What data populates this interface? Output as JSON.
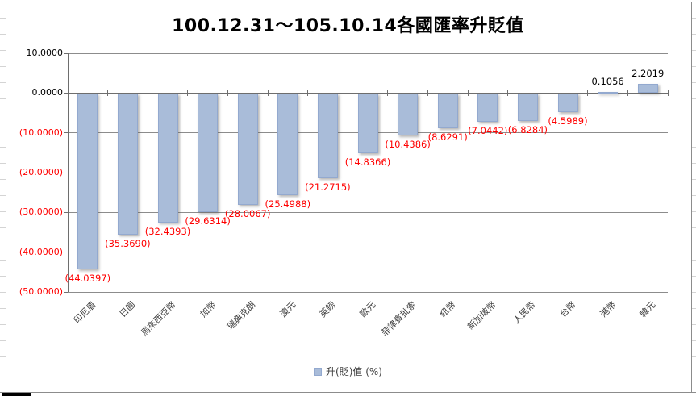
{
  "chart_data": {
    "type": "bar",
    "title": "100.12.31～105.10.14各國匯率升貶值",
    "legend": "升(貶)值 (%)",
    "legend_position": "bottom",
    "categories": [
      "印尼盾",
      "日圓",
      "馬來西亞幣",
      "加幣",
      "瑞典克朗",
      "澳元",
      "英鎊",
      "歐元",
      "菲律賓批索",
      "紐幣",
      "新加坡幣",
      "人民幣",
      "台幣",
      "港幣",
      "韓元"
    ],
    "values": [
      -44.0397,
      -35.369,
      -32.4393,
      -29.6314,
      -28.0067,
      -25.4988,
      -21.2715,
      -14.8366,
      -10.4386,
      -8.6291,
      -7.0442,
      -6.8284,
      -4.5989,
      0.1056,
      2.2019
    ],
    "data_labels": [
      "(44.0397)",
      "(35.3690)",
      "(32.4393)",
      "(29.6314)",
      "(28.0067)",
      "(25.4988)",
      "(21.2715)",
      "(14.8366)",
      "(10.4386)",
      "(8.6291)",
      "(7.0442)",
      "(6.8284)",
      "(4.5989)",
      "0.1056",
      "2.2019"
    ],
    "y_tick_labels": [
      "10.0000",
      "0.0000",
      "(10.0000)",
      "(20.0000)",
      "(30.0000)",
      "(40.0000)",
      "(50.0000)"
    ],
    "y_tick_values": [
      10,
      0,
      -10,
      -20,
      -30,
      -40,
      -50
    ],
    "ylim": [
      -50,
      10
    ],
    "grid": true,
    "colors": {
      "bar_fill": "#a9bcd9",
      "bar_border": "#93a9cf",
      "negative_text": "#ff0000",
      "positive_text": "#000000",
      "gridline": "#8c8c8c",
      "axis": "#6e6e6e",
      "category_text": "#3f3f3f",
      "title_text": "#000000"
    }
  }
}
